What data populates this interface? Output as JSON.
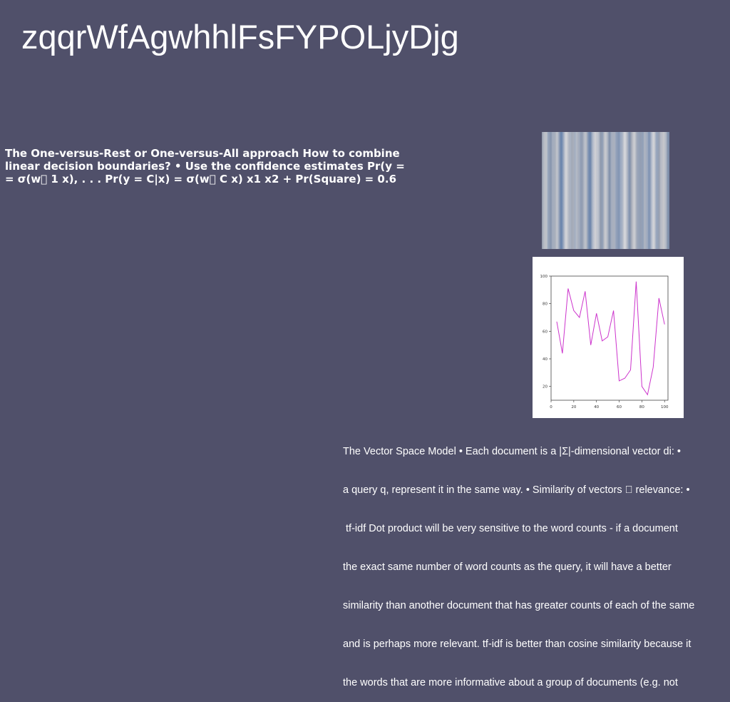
{
  "title": "zqqrWfAgwhhlFsFYPOLjyDjg",
  "slide_text": "The One-versus-Rest or One-versus-All approach How to combine\nlinear decision boundaries? • Use the confidence estimates Pr(y =\n= σ(w\u0000 1 x), . . . Pr(y = C|x) = σ(w\u0000 C x) x1 x2 + Pr(Square) = 0.6",
  "body_lines": [
    "The Vector Space Model • Each document is a |Σ|-dimensional vector di: •",
    "a query q, represent it in the same way. • Similarity of vectors \u0000 relevance: •",
    " tf-idf Dot product will be very sensitive to the word counts - if a document",
    "the exact same number of word counts as the query, it will have a better",
    "similarity than another document that has greater counts of each of the same",
    "and is perhaps more relevant. tf-idf is better than cosine similarity because it",
    "the words that are more informative about a group of documents (e.g. not"
  ],
  "chart_data": {
    "type": "line",
    "x": [
      5,
      10,
      15,
      20,
      25,
      30,
      35,
      40,
      45,
      50,
      55,
      60,
      65,
      70,
      75,
      80,
      85,
      90,
      95,
      100
    ],
    "series": [
      {
        "values": [
          67,
          44,
          91,
          75,
          70,
          89,
          50,
          73,
          53,
          56,
          75,
          24,
          26,
          32,
          96,
          20,
          14,
          34,
          84,
          65
        ],
        "color": "#cc33cc"
      }
    ],
    "xticks": [
      "0",
      "20",
      "40",
      "60",
      "80",
      "100"
    ],
    "yticks": [
      "20",
      "40",
      "60",
      "80",
      "100"
    ],
    "xlim": [
      0,
      103
    ],
    "ylim": [
      10,
      100
    ],
    "grid": false,
    "xlabel": "",
    "ylabel": "",
    "title": ""
  }
}
